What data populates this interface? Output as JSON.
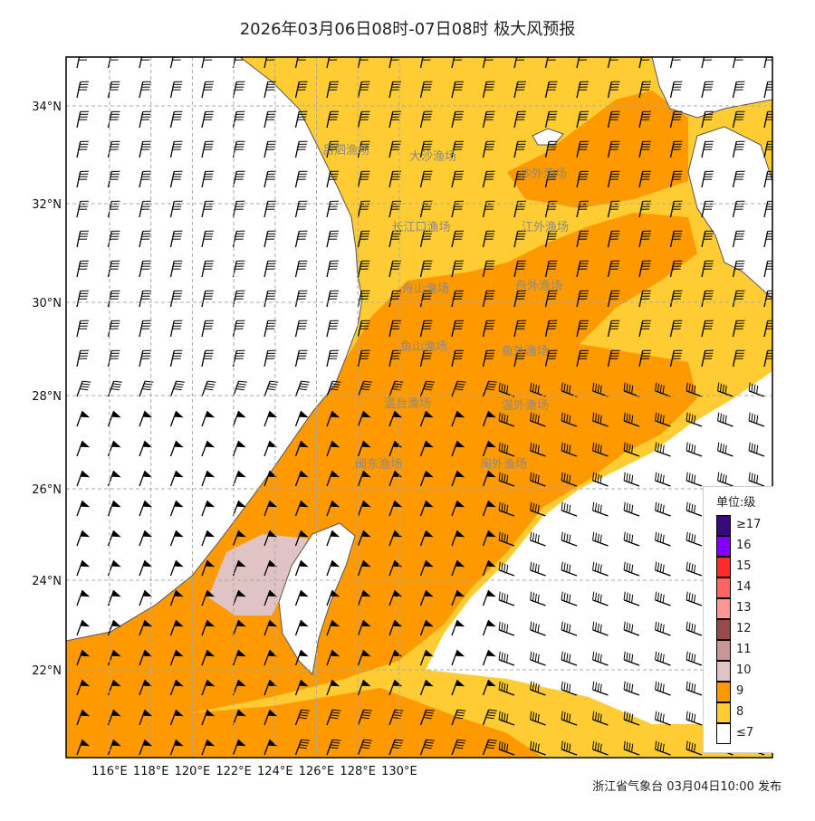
{
  "title": "2026年03月06日08时-07日08时 极大风预报",
  "footer": "浙江省气象台 03月04日10:00 发布",
  "axes": {
    "x_ticks": [
      "116°E",
      "118°E",
      "120°E",
      "122°E",
      "124°E",
      "126°E",
      "128°E",
      "130°E"
    ],
    "y_ticks": [
      "34°N",
      "32°N",
      "30°N",
      "28°N",
      "26°N",
      "24°N",
      "22°N"
    ]
  },
  "fishing_grounds": [
    "吕泗渔场",
    "大沙渔场",
    "沙外渔场",
    "长江口渔场",
    "江外渔场",
    "舟山渔场",
    "舟外渔场",
    "鱼山渔场",
    "鱼外渔场",
    "温台渔场",
    "温外渔场",
    "闽东渔场",
    "闽外渔场"
  ],
  "legend": {
    "title": "单位:级",
    "items": [
      {
        "label": "≥17",
        "color": "#3b0a7a"
      },
      {
        "label": "16",
        "color": "#8000ff"
      },
      {
        "label": "15",
        "color": "#ff2a2a"
      },
      {
        "label": "14",
        "color": "#ff6464"
      },
      {
        "label": "13",
        "color": "#ff9696"
      },
      {
        "label": "12",
        "color": "#964b4b"
      },
      {
        "label": "11",
        "color": "#c89696"
      },
      {
        "label": "10",
        "color": "#e0c3c3"
      },
      {
        "label": "9",
        "color": "#ff9900"
      },
      {
        "label": "8",
        "color": "#ffcc33"
      },
      {
        "label": "≤7",
        "color": "#ffffff"
      }
    ]
  }
}
